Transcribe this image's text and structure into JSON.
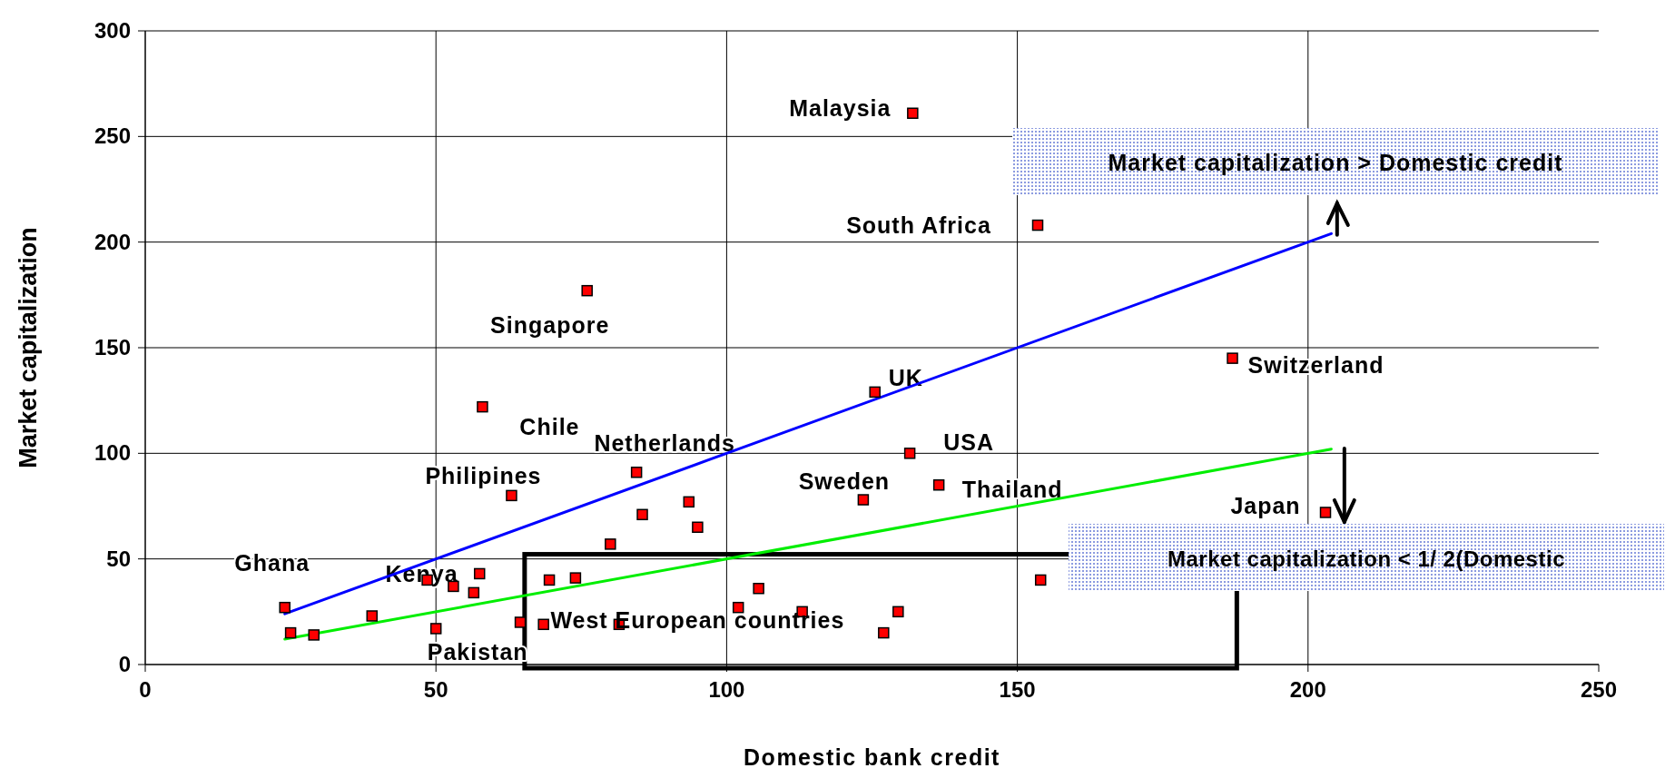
{
  "chart_data": {
    "type": "scatter",
    "xlabel": "Domestic bank credit",
    "ylabel": "Market capitalization",
    "xlim": [
      0,
      250
    ],
    "ylim": [
      0,
      300
    ],
    "xticks": [
      0,
      50,
      100,
      150,
      200,
      250
    ],
    "yticks": [
      0,
      50,
      100,
      150,
      200,
      250,
      300
    ],
    "grid": true,
    "marker": "square",
    "series": [
      {
        "type": "line",
        "color": "#0000ff",
        "marker": "none",
        "x": [
          24,
          204
        ],
        "values": [
          24,
          204
        ]
      },
      {
        "type": "line",
        "color": "#00ee00",
        "marker": "none",
        "x": [
          24,
          204
        ],
        "values": [
          12,
          102
        ]
      },
      {
        "type": "scatter",
        "color": "#ff0000",
        "x": [
          24,
          25,
          29,
          39,
          48.5,
          53,
          57.5,
          56.5,
          50,
          63,
          58,
          76,
          84.5,
          85.5,
          80,
          93.5,
          95,
          64.5,
          68.5,
          69.5,
          74,
          81.5,
          102,
          105.5,
          113,
          127,
          129.5,
          123.5,
          131.5,
          136.5,
          154,
          125.5,
          132,
          153.5,
          187,
          203
        ],
        "values": [
          27,
          15,
          14,
          23,
          40,
          37,
          43,
          34,
          17,
          80,
          122,
          177,
          91,
          71,
          57,
          77,
          65,
          20,
          19,
          40,
          41,
          19,
          27,
          36,
          25,
          15,
          25,
          78,
          100,
          85,
          40,
          129,
          261,
          208,
          145,
          72
        ]
      }
    ],
    "annotations": [
      {
        "text": "Ghana",
        "x": 24,
        "y": 27
      },
      {
        "text": "Kenya",
        "x": 48.5,
        "y": 40
      },
      {
        "text": "Pakistan",
        "x": 50,
        "y": 17
      },
      {
        "text": "Philipines",
        "x": 63,
        "y": 80
      },
      {
        "text": "Chile",
        "x": 58,
        "y": 122
      },
      {
        "text": "Singapore",
        "x": 76,
        "y": 177
      },
      {
        "text": "Netherlands",
        "x": 84.5,
        "y": 91
      },
      {
        "text": "Malaysia",
        "x": 132,
        "y": 261
      },
      {
        "text": "South Africa",
        "x": 153.5,
        "y": 208
      },
      {
        "text": "UK",
        "x": 125.5,
        "y": 129
      },
      {
        "text": "USA",
        "x": 131.5,
        "y": 100
      },
      {
        "text": "Sweden",
        "x": 123.5,
        "y": 78
      },
      {
        "text": "Thailand",
        "x": 136.5,
        "y": 85
      },
      {
        "text": "Switzerland",
        "x": 187,
        "y": 145
      },
      {
        "text": "Japan",
        "x": 203,
        "y": 72
      },
      "West European countries",
      "Market capitalization > Domestic credit",
      "Market capitalization < 1/ 2(Domestic"
    ]
  }
}
